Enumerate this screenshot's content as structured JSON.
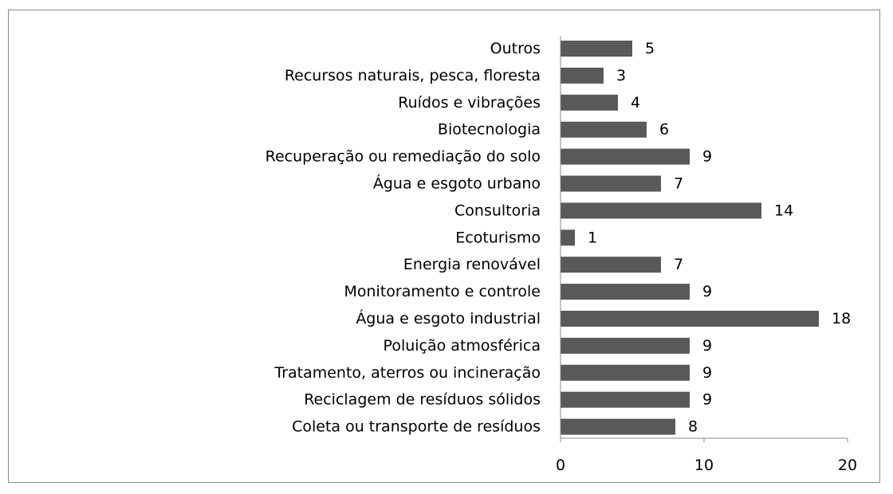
{
  "chart_data": {
    "type": "bar",
    "orientation": "horizontal",
    "title": "",
    "xlabel": "",
    "ylabel": "",
    "categories": [
      "Outros",
      "Recursos naturais, pesca, floresta",
      "Ruídos e vibrações",
      "Biotecnologia",
      "Recuperação ou remediação do solo",
      "Água e esgoto urbano",
      "Consultoria",
      "Ecoturismo",
      "Energia renovável",
      "Monitoramento e controle",
      "Água e esgoto industrial",
      "Poluição atmosférica",
      "Tratamento, aterros ou incineração",
      "Reciclagem de resíduos sólidos",
      "Coleta ou transporte de resíduos"
    ],
    "values": [
      5,
      3,
      4,
      6,
      9,
      7,
      14,
      1,
      7,
      9,
      18,
      9,
      9,
      9,
      8
    ],
    "xlim": [
      0,
      20
    ],
    "xticks": [
      0,
      10,
      20
    ],
    "grid": false,
    "legend": "none",
    "data_labels": true,
    "bar_color": "#595959"
  }
}
